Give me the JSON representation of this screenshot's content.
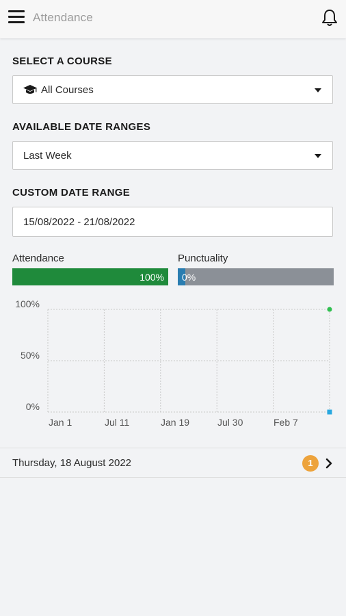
{
  "header": {
    "title": "Attendance",
    "menu_icon": "hamburger-menu-icon",
    "bell_icon": "bell-icon"
  },
  "course": {
    "label": "SELECT A COURSE",
    "value": "All Courses",
    "icon": "graduation-cap-icon"
  },
  "date_ranges": {
    "label": "AVAILABLE DATE RANGES",
    "value": "Last Week"
  },
  "custom_range": {
    "label": "CUSTOM DATE RANGE",
    "value": "15/08/2022 - 21/08/2022"
  },
  "metrics": {
    "attendance": {
      "label": "Attendance",
      "value_text": "100%",
      "value": 100,
      "color": "#1f8a3b"
    },
    "punctuality": {
      "label": "Punctuality",
      "value_text": "0%",
      "value": 0,
      "color": "#2a7db0",
      "track_color": "#8b9097"
    }
  },
  "chart_data": {
    "type": "scatter",
    "y_ticks": [
      "100%",
      "50%",
      "0%"
    ],
    "x_ticks": [
      "Jan 1",
      "Jul 11",
      "Jan 19",
      "Jul 30",
      "Feb 7"
    ],
    "ylim": [
      0,
      100
    ],
    "grid": true,
    "series": [
      {
        "values": [
          100
        ],
        "color": "#2fbf4f"
      },
      {
        "values": [
          0
        ],
        "color": "#29a8e0"
      }
    ]
  },
  "day": {
    "label": "Thursday, 18 August 2022",
    "badge": "1"
  }
}
